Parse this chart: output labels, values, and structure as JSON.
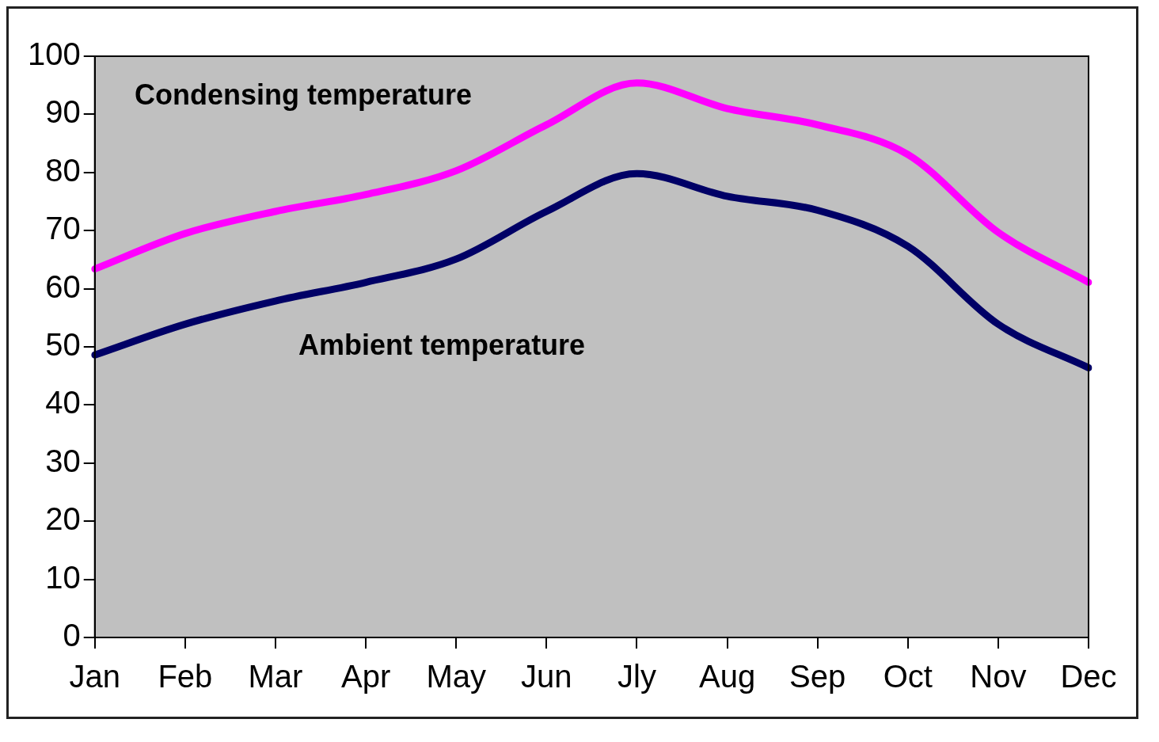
{
  "chart_data": {
    "type": "line",
    "categories": [
      "Jan",
      "Feb",
      "Mar",
      "Apr",
      "May",
      "Jun",
      "Jly",
      "Aug",
      "Sep",
      "Oct",
      "Nov",
      "Dec"
    ],
    "series": [
      {
        "name": "Condensing temperature",
        "color": "#ff00ff",
        "values": [
          63.4,
          69.5,
          73.3,
          76.2,
          80.3,
          88.2,
          95.4,
          91,
          88.2,
          83.1,
          69.7,
          61.1
        ]
      },
      {
        "name": "Ambient temperature",
        "color": "#000066",
        "values": [
          48.6,
          53.9,
          57.9,
          61.1,
          65.1,
          73.3,
          79.8,
          75.9,
          73.5,
          67.3,
          53.9,
          46.4
        ]
      }
    ],
    "ylim": [
      0,
      100
    ],
    "yticks": [
      0,
      10,
      20,
      30,
      40,
      50,
      60,
      70,
      80,
      90,
      100
    ],
    "grid": false,
    "legend": false,
    "marker": "none",
    "line_style": "solid"
  }
}
